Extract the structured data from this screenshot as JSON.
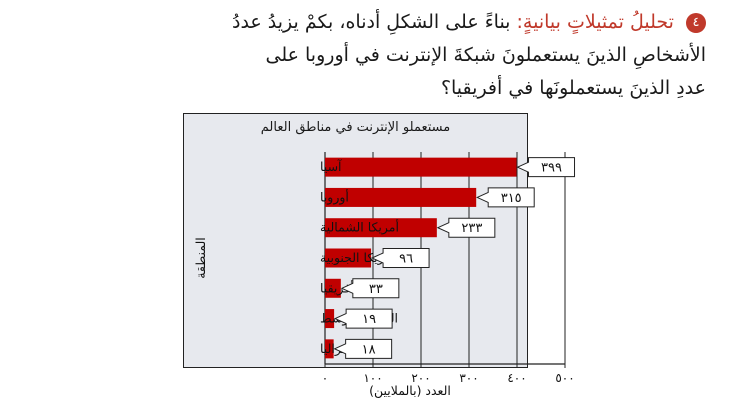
{
  "question": {
    "number": "٤",
    "heading": "تحليلُ تمثيلاتٍ بيانيةٍ:",
    "line1": "بناءً على الشكلِ أدناه، بكمْ يزيدُ عددُ",
    "line2": "الأشخاصِ الذينَ يستعملونَ شبكةَ الإنترنت في أوروبا على",
    "line3": "عددِ الذينَ يستعملونَها في أفريقيا؟"
  },
  "chart_data": {
    "type": "bar",
    "orientation": "horizontal",
    "title": "مستعملو الإنترنت في مناطق العالم",
    "xlabel": "العدد (بالملايين)",
    "ylabel": "المنطقة",
    "categories": [
      "آسيا",
      "أوروبا",
      "أمريكا الشمالية",
      "أمريكا الجنوبية",
      "أفريقيا",
      "الشرق الأوسط",
      "أستراليا"
    ],
    "values": [
      399,
      315,
      233,
      96,
      33,
      19,
      18
    ],
    "value_labels": [
      "٣٩٩",
      "٣١٥",
      "٢٣٣",
      "٩٦",
      "٣٣",
      "١٩",
      "١٨"
    ],
    "xlim": [
      0,
      500
    ],
    "xticks": [
      0,
      100,
      200,
      300,
      400,
      500
    ],
    "xtick_labels": [
      "٠",
      "١٠٠",
      "٢٠٠",
      "٣٠٠",
      "٤٠٠",
      "٥٠٠"
    ],
    "grid": true,
    "bar_color": "#c00000",
    "background_color": "#e7e9ee"
  }
}
